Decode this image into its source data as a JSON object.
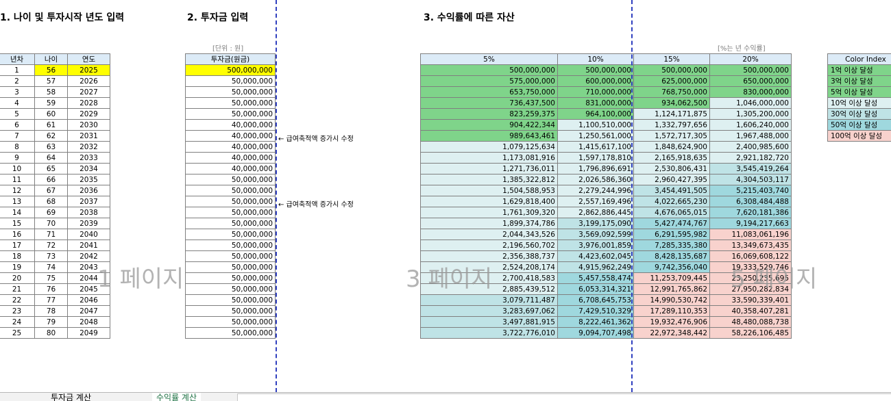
{
  "sections": {
    "s1": "1. 나이 및 투자시작 년도 입력",
    "s2": "2. 투자금 입력",
    "s3": "3. 수익률에 따른 자산"
  },
  "unit_note": "[단위 : 원]",
  "rate_note": "[%는 년 수익률]",
  "notes": {
    "n1": "← 급여축적액 증가시 수정",
    "n2": "← 급여축적액 증가시 수정"
  },
  "watermarks": {
    "p1": "1 페이지",
    "p3": "3 페이지",
    "p5": "5 페이지"
  },
  "table1": {
    "headers": [
      "년차",
      "나이",
      "연도"
    ],
    "rows": [
      [
        "1",
        "56",
        "2025"
      ],
      [
        "2",
        "57",
        "2026"
      ],
      [
        "3",
        "58",
        "2027"
      ],
      [
        "4",
        "59",
        "2028"
      ],
      [
        "5",
        "60",
        "2029"
      ],
      [
        "6",
        "61",
        "2030"
      ],
      [
        "7",
        "62",
        "2031"
      ],
      [
        "8",
        "63",
        "2032"
      ],
      [
        "9",
        "64",
        "2033"
      ],
      [
        "10",
        "65",
        "2034"
      ],
      [
        "11",
        "66",
        "2035"
      ],
      [
        "12",
        "67",
        "2036"
      ],
      [
        "13",
        "68",
        "2037"
      ],
      [
        "14",
        "69",
        "2038"
      ],
      [
        "15",
        "70",
        "2039"
      ],
      [
        "16",
        "71",
        "2040"
      ],
      [
        "17",
        "72",
        "2041"
      ],
      [
        "18",
        "73",
        "2042"
      ],
      [
        "19",
        "74",
        "2043"
      ],
      [
        "20",
        "75",
        "2044"
      ],
      [
        "21",
        "76",
        "2045"
      ],
      [
        "22",
        "77",
        "2046"
      ],
      [
        "23",
        "78",
        "2047"
      ],
      [
        "24",
        "79",
        "2048"
      ],
      [
        "25",
        "80",
        "2049"
      ]
    ]
  },
  "table2": {
    "header": "투자금(원금)",
    "values": [
      "500,000,000",
      "50,000,000",
      "50,000,000",
      "50,000,000",
      "50,000,000",
      "40,000,000",
      "40,000,000",
      "40,000,000",
      "40,000,000",
      "40,000,000",
      "50,000,000",
      "50,000,000",
      "50,000,000",
      "50,000,000",
      "50,000,000",
      "50,000,000",
      "50,000,000",
      "50,000,000",
      "50,000,000",
      "50,000,000",
      "50,000,000",
      "50,000,000",
      "50,000,000",
      "50,000,000",
      "50,000,000"
    ]
  },
  "table3": {
    "headers": [
      "5%",
      "10%",
      "15%",
      "20%"
    ],
    "rows": [
      [
        "500,000,000",
        "500,000,000",
        "500,000,000",
        "500,000,000"
      ],
      [
        "575,000,000",
        "600,000,000",
        "625,000,000",
        "650,000,000"
      ],
      [
        "653,750,000",
        "710,000,000",
        "768,750,000",
        "830,000,000"
      ],
      [
        "736,437,500",
        "831,000,000",
        "934,062,500",
        "1,046,000,000"
      ],
      [
        "823,259,375",
        "964,100,000",
        "1,124,171,875",
        "1,305,200,000"
      ],
      [
        "904,422,344",
        "1,100,510,000",
        "1,332,797,656",
        "1,606,240,000"
      ],
      [
        "989,643,461",
        "1,250,561,000",
        "1,572,717,305",
        "1,967,488,000"
      ],
      [
        "1,079,125,634",
        "1,415,617,100",
        "1,848,624,900",
        "2,400,985,600"
      ],
      [
        "1,173,081,916",
        "1,597,178,810",
        "2,165,918,635",
        "2,921,182,720"
      ],
      [
        "1,271,736,011",
        "1,796,896,691",
        "2,530,806,431",
        "3,545,419,264"
      ],
      [
        "1,385,322,812",
        "2,026,586,360",
        "2,960,427,395",
        "4,304,503,117"
      ],
      [
        "1,504,588,953",
        "2,279,244,996",
        "3,454,491,505",
        "5,215,403,740"
      ],
      [
        "1,629,818,400",
        "2,557,169,496",
        "4,022,665,230",
        "6,308,484,488"
      ],
      [
        "1,761,309,320",
        "2,862,886,445",
        "4,676,065,015",
        "7,620,181,386"
      ],
      [
        "1,899,374,786",
        "3,199,175,090",
        "5,427,474,767",
        "9,194,217,663"
      ],
      [
        "2,044,343,526",
        "3,569,092,599",
        "6,291,595,982",
        "11,083,061,196"
      ],
      [
        "2,196,560,702",
        "3,976,001,859",
        "7,285,335,380",
        "13,349,673,435"
      ],
      [
        "2,356,388,737",
        "4,423,602,045",
        "8,428,135,687",
        "16,069,608,122"
      ],
      [
        "2,524,208,174",
        "4,915,962,249",
        "9,742,356,040",
        "19,333,529,746"
      ],
      [
        "2,700,418,583",
        "5,457,558,474",
        "11,253,709,445",
        "23,250,235,695"
      ],
      [
        "2,885,439,512",
        "6,053,314,321",
        "12,991,765,862",
        "27,950,282,834"
      ],
      [
        "3,079,711,487",
        "6,708,645,753",
        "14,990,530,742",
        "33,590,339,401"
      ],
      [
        "3,283,697,062",
        "7,429,510,329",
        "17,289,110,353",
        "40,358,407,281"
      ],
      [
        "3,497,881,915",
        "8,222,461,362",
        "19,932,476,906",
        "48,480,088,738"
      ],
      [
        "3,722,776,010",
        "9,094,707,498",
        "22,972,348,442",
        "58,226,106,485"
      ]
    ]
  },
  "legend": {
    "header": "Color Index",
    "items": [
      {
        "label": "1억 이상 달성",
        "color": "#7fd48a"
      },
      {
        "label": "3억 이상 달성",
        "color": "#7fd48a"
      },
      {
        "label": "5억 이상 달성",
        "color": "#7fd48a"
      },
      {
        "label": "10억 이상 달성",
        "color": "#def0f1"
      },
      {
        "label": "30억 이상 달성",
        "color": "#bfe3e6"
      },
      {
        "label": "50억 이상 달성",
        "color": "#9fd8de"
      },
      {
        "label": "100억 이상 달성",
        "color": "#f8d2cd"
      }
    ]
  },
  "tiers": {
    "green": "#7fd48a",
    "t10": "#def0f1",
    "t30": "#bfe3e6",
    "t50": "#9fd8de",
    "t100": "#f8d2cd",
    "yellow": "#ffff00"
  },
  "tabs": {
    "prev": "투자금 계산",
    "active": "수익률 계산"
  }
}
